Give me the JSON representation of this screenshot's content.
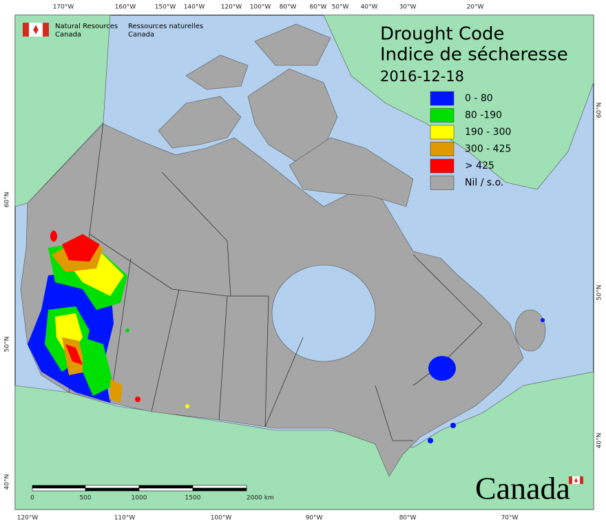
{
  "header": {
    "org_en": [
      "Natural Resources",
      "Canada"
    ],
    "org_fr": [
      "Ressources naturelles",
      "Canada"
    ]
  },
  "title": [
    "Drought Code",
    "Indice de sécheresse"
  ],
  "date": "2016-12-18",
  "legend": [
    {
      "label": "0 - 80",
      "color": "#0015ff"
    },
    {
      "label": "80 -190",
      "color": "#00e000"
    },
    {
      "label": "190 - 300",
      "color": "#ffff00"
    },
    {
      "label": "300 - 425",
      "color": "#e09a00"
    },
    {
      "label": "> 425",
      "color": "#ff0000"
    },
    {
      "label": "Nil / s.o.",
      "color": "#a6a6a6"
    }
  ],
  "graticule": {
    "top": [
      "170°W",
      "160°W",
      "150°W",
      "140°W",
      "120°W",
      "100°W",
      "80°W",
      "60°W",
      "50°W",
      "40°W",
      "30°W",
      "20°W"
    ],
    "bottom": [
      "120°W",
      "110°W",
      "100°W",
      "90°W",
      "80°W",
      "70°W"
    ],
    "left": [
      "60°N",
      "50°N",
      "40°N"
    ],
    "right": [
      "60°N",
      "50°N",
      "40°N"
    ]
  },
  "scale": [
    "0",
    "500",
    "1000",
    "1500",
    "2000  km"
  ],
  "wordmark": "Canada"
}
